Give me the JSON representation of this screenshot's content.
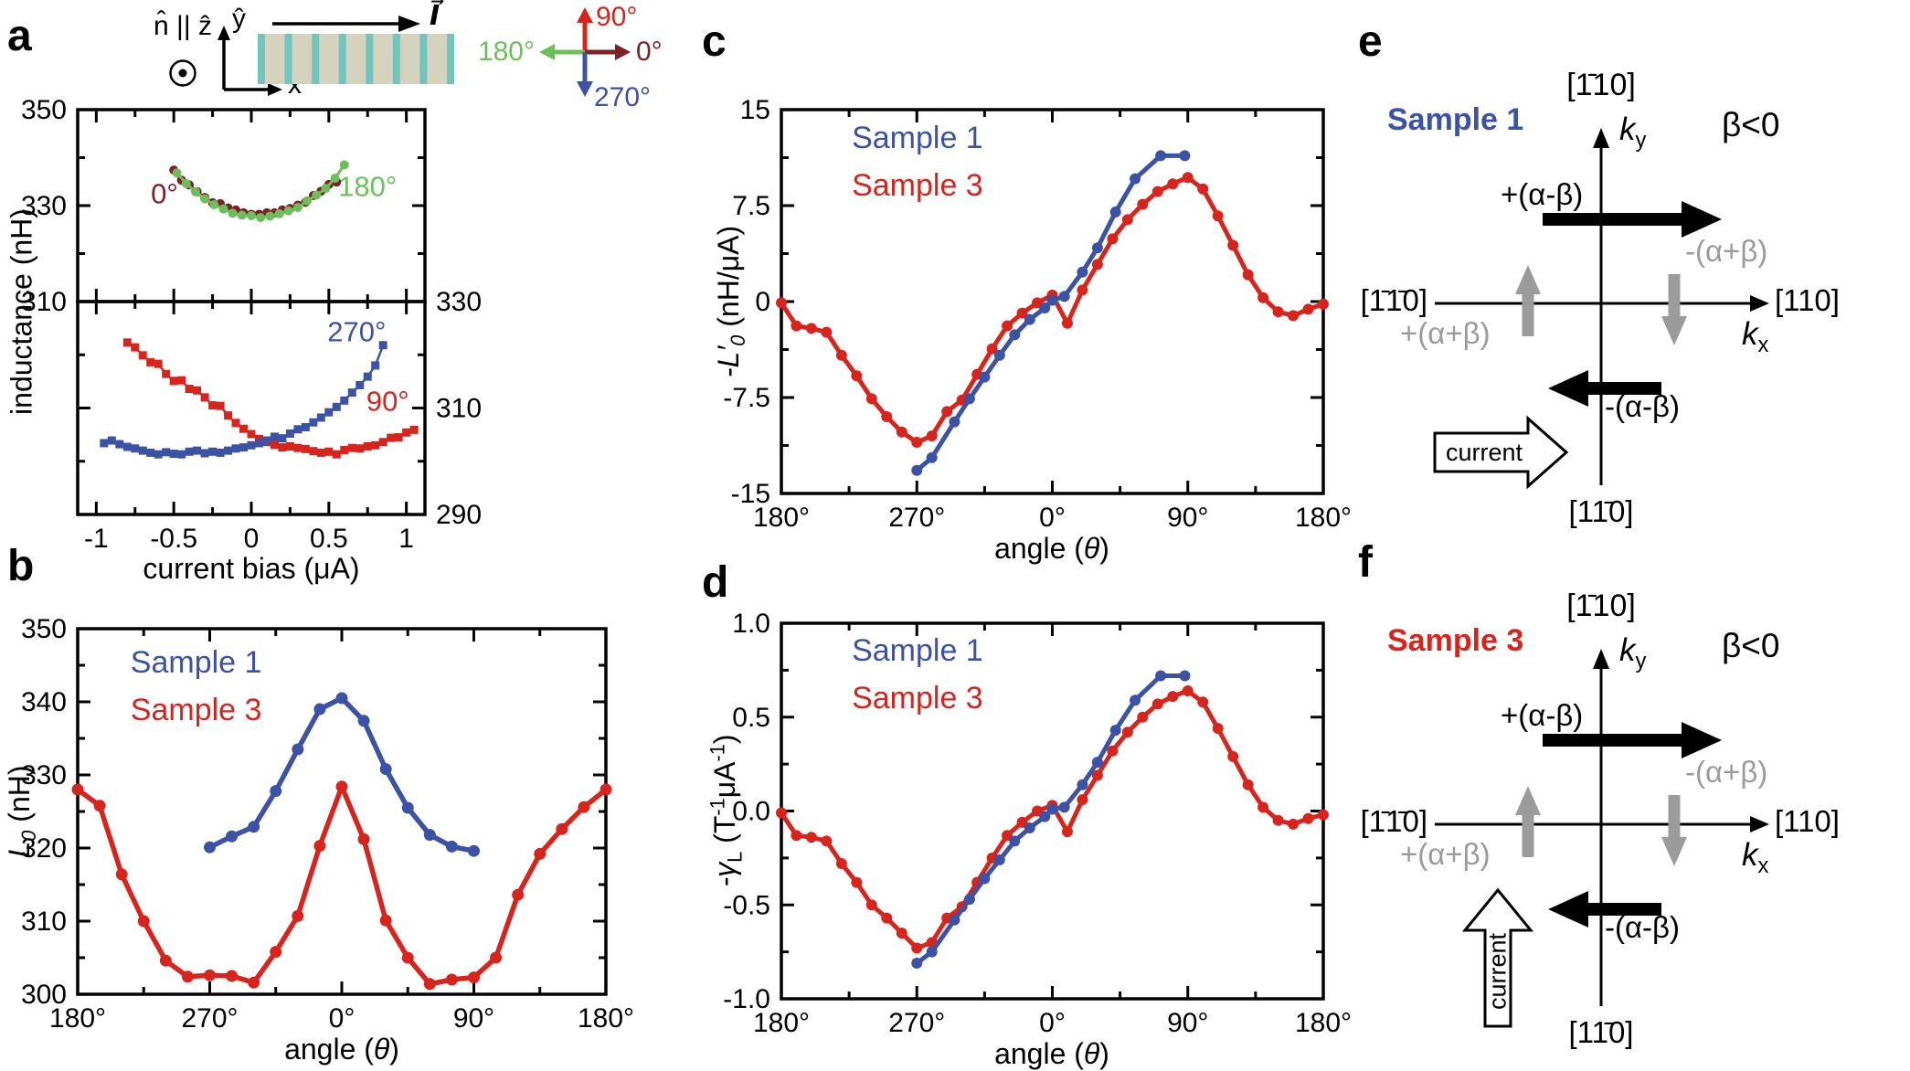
{
  "panels": {
    "a": "a",
    "b": "b",
    "c": "c",
    "d": "d",
    "e": "e",
    "f": "f"
  },
  "colors": {
    "blue": "#3C52A4",
    "red": "#D7251D",
    "dark_red": "#7E2125",
    "green": "#6CBF5A",
    "gray": "#9B9B9B",
    "bar_fill": "#D5D3BE",
    "bar_stripe": "#72C5BE",
    "black": "#000000"
  },
  "schematic": {
    "normal": "n̂ || ẑ",
    "y_axis": "ŷ",
    "x_axis": "x̂",
    "current_vector": "I⃗",
    "device_stripes": 8,
    "compass": {
      "up": "90°",
      "right": "0°",
      "left": "180°",
      "down": "270°"
    }
  },
  "chart_data": [
    {
      "id": "a_top",
      "type": "line",
      "title": "",
      "xlabel": "",
      "ylabel": "inductance (nH)",
      "x": {
        "lim": [
          -1.12,
          1.12
        ],
        "major": [
          -1,
          -0.5,
          0,
          0.5,
          1
        ],
        "minor": [
          -0.75,
          -0.25,
          0.25,
          0.75
        ],
        "labels": []
      },
      "y": {
        "lim": [
          310,
          350
        ],
        "major": [
          350,
          330,
          310
        ],
        "minor": [
          340,
          320
        ],
        "labels_left": [
          "350",
          "330",
          "310"
        ],
        "labels_right": []
      },
      "series": [
        {
          "name": "0 deg",
          "color": "dark_red",
          "marker": "circle",
          "ms": 5,
          "lw": 3,
          "x": [
            -0.5,
            -0.45,
            -0.4,
            -0.35,
            -0.3,
            -0.25,
            -0.2,
            -0.15,
            -0.1,
            -0.05,
            0,
            0.05,
            0.1,
            0.15,
            0.2,
            0.25,
            0.3,
            0.35,
            0.4,
            0.45,
            0.5,
            0.55
          ],
          "y": [
            337.4,
            335.3,
            334.3,
            332.9,
            331.7,
            330.6,
            330.4,
            329.5,
            329.1,
            328.5,
            328.2,
            328.2,
            328.5,
            328.5,
            329.1,
            329.4,
            330.1,
            330.7,
            332.1,
            333.0,
            334.4,
            334.9
          ]
        },
        {
          "name": "180 deg",
          "color": "green",
          "marker": "circle",
          "ms": 5,
          "lw": 3,
          "x": [
            -0.48,
            -0.42,
            -0.36,
            -0.3,
            -0.24,
            -0.18,
            -0.12,
            -0.06,
            0,
            0.06,
            0.12,
            0.18,
            0.24,
            0.3,
            0.36,
            0.42,
            0.48,
            0.54,
            0.6
          ],
          "y": [
            336.8,
            334.6,
            332.9,
            331.4,
            330.2,
            329.3,
            328.4,
            328.0,
            327.9,
            327.5,
            327.8,
            328.3,
            328.9,
            329.6,
            331.0,
            332.2,
            333.6,
            335.7,
            338.5
          ]
        }
      ],
      "annotations": [
        {
          "text": "0°",
          "color": "dark_red",
          "x": -0.56,
          "y": 330.5
        },
        {
          "text": "180°",
          "color": "green",
          "x": 0.75,
          "y": 332
        }
      ]
    },
    {
      "id": "a_bottom",
      "type": "line",
      "title": "",
      "xlabel": "current bias (μA)",
      "ylabel": "",
      "x": {
        "lim": [
          -1.12,
          1.12
        ],
        "major": [
          -1,
          -0.5,
          0,
          0.5,
          1
        ],
        "minor": [
          -0.75,
          -0.25,
          0.25,
          0.75
        ],
        "labels": [
          "-1",
          "-0.5",
          "0",
          "0.5",
          "1"
        ]
      },
      "y": {
        "lim": [
          290,
          330
        ],
        "major": [
          330,
          310,
          290
        ],
        "minor": [
          320,
          300
        ],
        "labels_left": [],
        "labels_right": [
          "330",
          "310",
          "290"
        ]
      },
      "series": [
        {
          "name": "90 deg",
          "color": "red",
          "marker": "square",
          "ms": 4.5,
          "lw": 2.5,
          "x": [
            -0.8,
            -0.75,
            -0.7,
            -0.65,
            -0.6,
            -0.55,
            -0.5,
            -0.45,
            -0.4,
            -0.35,
            -0.3,
            -0.25,
            -0.2,
            -0.15,
            -0.1,
            -0.05,
            0,
            0.05,
            0.1,
            0.15,
            0.2,
            0.25,
            0.3,
            0.35,
            0.4,
            0.45,
            0.5,
            0.55,
            0.6,
            0.65,
            0.7,
            0.75,
            0.8,
            0.85,
            0.9,
            0.95,
            1.0,
            1.05
          ],
          "y": [
            322.3,
            321.4,
            319.9,
            318.6,
            318.3,
            316.4,
            315.1,
            315.2,
            313.6,
            313.3,
            312.0,
            310.5,
            310.4,
            308.6,
            307.2,
            306.1,
            305.1,
            304.2,
            303.6,
            303.1,
            302.6,
            302.8,
            302.5,
            302.3,
            301.9,
            301.6,
            301.8,
            301.3,
            302.1,
            302.5,
            302.4,
            302.8,
            303.0,
            303.6,
            304.4,
            304.5,
            305.4,
            305.9
          ]
        },
        {
          "name": "270 deg",
          "color": "blue",
          "marker": "square",
          "ms": 4.5,
          "lw": 2.5,
          "x": [
            -0.95,
            -0.9,
            -0.85,
            -0.8,
            -0.75,
            -0.7,
            -0.65,
            -0.6,
            -0.55,
            -0.5,
            -0.45,
            -0.4,
            -0.35,
            -0.3,
            -0.25,
            -0.2,
            -0.15,
            -0.1,
            -0.05,
            0,
            0.05,
            0.1,
            0.15,
            0.2,
            0.25,
            0.3,
            0.35,
            0.4,
            0.45,
            0.5,
            0.55,
            0.6,
            0.65,
            0.7,
            0.75,
            0.8,
            0.85
          ],
          "y": [
            303.4,
            303.9,
            303.2,
            302.7,
            302.4,
            302.0,
            301.6,
            301.3,
            301.7,
            301.4,
            301.3,
            301.8,
            302.0,
            301.5,
            301.8,
            301.6,
            302.0,
            302.4,
            302.6,
            303.0,
            303.4,
            303.9,
            304.6,
            304.3,
            305.2,
            306.0,
            306.4,
            307.3,
            308.2,
            309.2,
            310.2,
            311.4,
            312.9,
            314.3,
            315.9,
            318.0,
            321.8
          ]
        }
      ],
      "annotations": [
        {
          "text": "270°",
          "color": "blue",
          "x": 0.68,
          "y": 322.5
        },
        {
          "text": "90°",
          "color": "red",
          "x": 0.88,
          "y": 309.5
        }
      ]
    },
    {
      "id": "b",
      "type": "line",
      "title": "",
      "xlabel": "angle (θ)",
      "ylabel": "L₀ (nH)",
      "xlabel_parts": {
        "pre": "angle (",
        "theta": "θ",
        "post": ")"
      },
      "ylabel_parts": {
        "main": "L",
        "sub": "0",
        "unit": " (nH)"
      },
      "x": {
        "lim": [
          -180,
          180
        ],
        "major": [
          -180,
          -90,
          0,
          90,
          180
        ],
        "minor": [
          -135,
          -45,
          45,
          135
        ],
        "labels": [
          "180°",
          "270°",
          "0°",
          "90°",
          "180°"
        ]
      },
      "y": {
        "lim": [
          300,
          350
        ],
        "major": [
          300,
          310,
          320,
          330,
          340,
          350
        ],
        "minor": [
          305,
          315,
          325,
          335,
          345
        ],
        "labels_left": [
          "300",
          "310",
          "320",
          "330",
          "340",
          "350"
        ],
        "labels_right": []
      },
      "legend": {
        "entries": [
          {
            "label": "Sample 1",
            "color": "blue"
          },
          {
            "label": "Sample 3",
            "color": "red"
          }
        ],
        "fx": 0.1,
        "fy": 0.12,
        "dy": 52
      },
      "series": [
        {
          "name": "Sample 3",
          "color": "red",
          "marker": "circle",
          "ms": 6.5,
          "lw": 5.5,
          "x": [
            -180,
            -165,
            -150,
            -135,
            -120,
            -105,
            -90,
            -75,
            -60,
            -45,
            -30,
            -15,
            0,
            15,
            30,
            45,
            60,
            75,
            90,
            105,
            120,
            135,
            150,
            165,
            180
          ],
          "y": [
            328.0,
            325.8,
            316.4,
            310.0,
            304.6,
            302.4,
            302.6,
            302.5,
            301.6,
            305.8,
            310.7,
            320.3,
            328.4,
            321.2,
            310.1,
            305.0,
            301.4,
            302.0,
            302.3,
            305.0,
            313.6,
            319.2,
            322.6,
            325.6,
            328.0
          ]
        },
        {
          "name": "Sample 1",
          "color": "blue",
          "marker": "circle",
          "ms": 6.5,
          "lw": 5.5,
          "x": [
            -90,
            -75,
            -60,
            -45,
            -30,
            -15,
            0,
            15,
            30,
            45,
            60,
            75,
            90
          ],
          "y": [
            320.1,
            321.6,
            322.9,
            327.8,
            333.5,
            339.0,
            340.5,
            337.4,
            330.8,
            325.5,
            321.8,
            320.2,
            319.6
          ]
        }
      ]
    },
    {
      "id": "c",
      "type": "line",
      "title": "",
      "xlabel": "angle (θ)",
      "ylabel": "-L′₀ (nH/μA)",
      "xlabel_parts": {
        "pre": "angle (",
        "theta": "θ",
        "post": ")"
      },
      "ylabel_parts": {
        "main": "-L′",
        "sub": "0",
        "unit": " (nH/μA)"
      },
      "x": {
        "lim": [
          -180,
          180
        ],
        "major": [
          -180,
          -90,
          0,
          90,
          180
        ],
        "minor": [
          -135,
          -45,
          45,
          135
        ],
        "labels": [
          "180°",
          "270°",
          "0°",
          "90°",
          "180°"
        ]
      },
      "y": {
        "lim": [
          -15,
          15
        ],
        "major": [
          15,
          7.5,
          0,
          -7.5,
          -15
        ],
        "minor": [
          11.25,
          3.75,
          -3.75,
          -11.25
        ],
        "labels_left": [
          "15",
          "7.5",
          "0",
          "-7.5",
          "-15"
        ],
        "labels_right": []
      },
      "legend": {
        "entries": [
          {
            "label": "Sample 1",
            "color": "blue"
          },
          {
            "label": "Sample 3",
            "color": "red"
          }
        ],
        "fx": 0.13,
        "fy": 0.1,
        "dy": 52
      },
      "series": [
        {
          "name": "Sample 3",
          "color": "red",
          "marker": "circle",
          "ms": 6,
          "lw": 5,
          "x": [
            -180,
            -170,
            -160,
            -150,
            -140,
            -130,
            -120,
            -110,
            -100,
            -90,
            -80,
            -70,
            -60,
            -50,
            -40,
            -30,
            -20,
            -10,
            0,
            10,
            20,
            30,
            40,
            50,
            60,
            70,
            80,
            90,
            100,
            110,
            120,
            130,
            140,
            150,
            160,
            170,
            180
          ],
          "y": [
            -0.1,
            -1.9,
            -2.1,
            -2.4,
            -4.2,
            -5.8,
            -7.6,
            -9.0,
            -10.2,
            -11.0,
            -10.5,
            -8.6,
            -7.7,
            -5.7,
            -3.7,
            -1.9,
            -0.9,
            -0.1,
            0.5,
            -1.7,
            0.9,
            2.9,
            4.9,
            6.4,
            7.6,
            8.6,
            9.2,
            9.7,
            8.8,
            6.7,
            4.4,
            2.1,
            0.3,
            -0.8,
            -1.1,
            -0.6,
            -0.2
          ]
        },
        {
          "name": "Sample 1",
          "color": "blue",
          "marker": "circle",
          "ms": 6,
          "lw": 5,
          "x": [
            -90,
            -80,
            -65,
            -55,
            -45,
            -35,
            -25,
            -15,
            -5,
            0,
            8,
            20,
            30,
            42,
            55,
            72,
            88
          ],
          "y": [
            -13.2,
            -12.2,
            -9.4,
            -7.6,
            -5.9,
            -4.2,
            -2.6,
            -1.4,
            -0.5,
            0.1,
            0.4,
            2.3,
            4.2,
            7.0,
            9.6,
            11.4,
            11.4
          ]
        }
      ]
    },
    {
      "id": "d",
      "type": "line",
      "title": "",
      "xlabel": "angle (θ)",
      "ylabel": "-γL (T⁻¹μA⁻¹)",
      "xlabel_parts": {
        "pre": "angle (",
        "theta": "θ",
        "post": ")"
      },
      "ylabel_parts": {
        "main": "-γ",
        "sub": "L",
        "u1": " (T",
        "s1": "-1",
        "u2": "μA",
        "s2": "-1",
        "u3": ")"
      },
      "x": {
        "lim": [
          -180,
          180
        ],
        "major": [
          -180,
          -90,
          0,
          90,
          180
        ],
        "minor": [
          -135,
          -45,
          45,
          135
        ],
        "labels": [
          "180°",
          "270°",
          "0°",
          "90°",
          "180°"
        ]
      },
      "y": {
        "lim": [
          -1,
          1
        ],
        "major": [
          1,
          0.5,
          0,
          -0.5,
          -1
        ],
        "minor": [
          0.75,
          0.25,
          -0.25,
          -0.75
        ],
        "labels_left": [
          "1.0",
          "0.5",
          "0.0",
          "-0.5",
          "-1.0"
        ],
        "labels_right": []
      },
      "legend": {
        "entries": [
          {
            "label": "Sample 1",
            "color": "blue"
          },
          {
            "label": "Sample 3",
            "color": "red"
          }
        ],
        "fx": 0.13,
        "fy": 0.1,
        "dy": 52
      },
      "series": [
        {
          "name": "Sample 3",
          "color": "red",
          "marker": "circle",
          "ms": 6,
          "lw": 5,
          "x": [
            -180,
            -170,
            -160,
            -150,
            -140,
            -130,
            -120,
            -110,
            -100,
            -90,
            -80,
            -70,
            -60,
            -50,
            -40,
            -30,
            -20,
            -10,
            0,
            10,
            20,
            30,
            40,
            50,
            60,
            70,
            80,
            90,
            100,
            110,
            120,
            130,
            140,
            150,
            160,
            170,
            180
          ],
          "y": [
            -0.01,
            -0.13,
            -0.14,
            -0.16,
            -0.28,
            -0.38,
            -0.5,
            -0.57,
            -0.65,
            -0.73,
            -0.7,
            -0.57,
            -0.51,
            -0.38,
            -0.25,
            -0.13,
            -0.06,
            0.0,
            0.03,
            -0.11,
            0.06,
            0.19,
            0.32,
            0.42,
            0.5,
            0.57,
            0.61,
            0.64,
            0.58,
            0.44,
            0.29,
            0.14,
            0.02,
            -0.05,
            -0.07,
            -0.04,
            -0.02
          ]
        },
        {
          "name": "Sample 1",
          "color": "blue",
          "marker": "circle",
          "ms": 6,
          "lw": 5,
          "x": [
            -90,
            -80,
            -65,
            -55,
            -45,
            -35,
            -25,
            -15,
            -5,
            0,
            8,
            20,
            30,
            42,
            55,
            72,
            88
          ],
          "y": [
            -0.81,
            -0.75,
            -0.58,
            -0.47,
            -0.36,
            -0.26,
            -0.16,
            -0.09,
            -0.03,
            0.01,
            0.02,
            0.14,
            0.26,
            0.43,
            0.59,
            0.72,
            0.72
          ]
        }
      ]
    }
  ],
  "diagram_e": {
    "sample": "Sample 1",
    "beta": "β<0",
    "top": "[1̄10]",
    "bottom": "[11̄0]",
    "left": "[1̄1̄0]",
    "right": "[110]",
    "ky_main": "k",
    "ky_sub": "y",
    "kx_main": "k",
    "kx_sub": "x",
    "arrow_plus_ab": "+(α-β)",
    "arrow_minus_ab": "-(α-β)",
    "arrow_plus_apb": "+(α+β)",
    "arrow_minus_apb": "-(α+β)",
    "current": "current"
  },
  "diagram_f": {
    "sample": "Sample 3",
    "beta": "β<0",
    "top": "[1̄10]",
    "bottom": "[11̄0]",
    "left": "[1̄1̄0]",
    "right": "[110]",
    "ky_main": "k",
    "ky_sub": "y",
    "kx_main": "k",
    "kx_sub": "x",
    "arrow_plus_ab": "+(α-β)",
    "arrow_minus_ab": "-(α-β)",
    "arrow_plus_apb": "+(α+β)",
    "arrow_minus_apb": "-(α+β)",
    "current": "current"
  }
}
